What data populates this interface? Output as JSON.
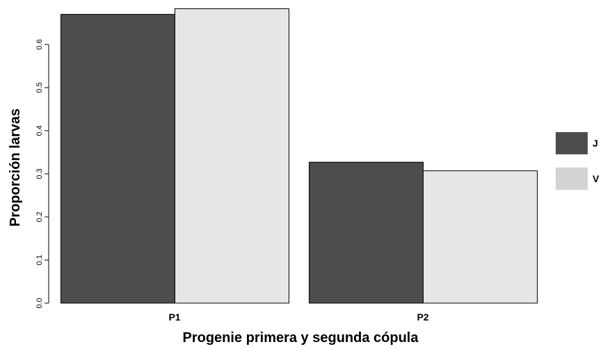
{
  "chart_data": {
    "type": "bar",
    "categories": [
      "P1",
      "P2"
    ],
    "series": [
      {
        "name": "J",
        "values": [
          0.67,
          0.327
        ],
        "color": "#4d4d4d"
      },
      {
        "name": "V",
        "values": [
          0.683,
          0.307
        ],
        "color": "#e6e6e6"
      }
    ],
    "legend_swatch_colors": [
      "#4d4d4d",
      "#d3d3d3"
    ],
    "xlabel": "Progenie primera y segunda cópula",
    "ylabel": "Proporción larvas",
    "yticks": [
      "0.0",
      "0.1",
      "0.2",
      "0.3",
      "0.4",
      "0.5",
      "0.6"
    ],
    "ylim": [
      0,
      0.7
    ],
    "legend_position": "right",
    "grid": false,
    "stroke_color": "#000000"
  }
}
